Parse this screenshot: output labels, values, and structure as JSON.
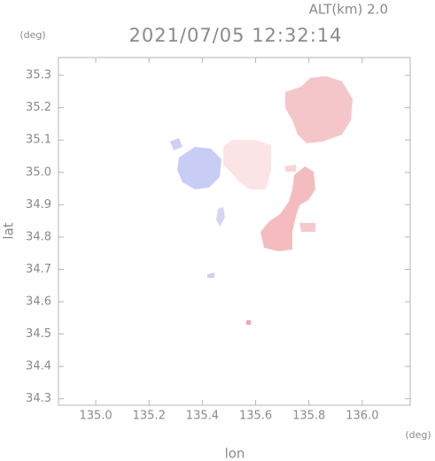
{
  "chart_data": {
    "type": "map",
    "title": "2021/07/05 12:32:14",
    "subtitle": "ALT(km)  2.0",
    "x_label": "lon",
    "y_label": "lat",
    "x_unit": "(deg)",
    "y_unit": "(deg)",
    "xlim": [
      134.86,
      136.18
    ],
    "ylim": [
      34.28,
      35.355
    ],
    "xticks": [
      {
        "value": 135.0,
        "label": "135.0"
      },
      135.2,
      135.4,
      135.6,
      135.8,
      {
        "value": 136.0,
        "label": "136.0"
      }
    ],
    "yticks": [
      34.3,
      34.4,
      34.5,
      34.6,
      34.7,
      34.8,
      34.9,
      {
        "value": 35.0,
        "label": "35.0"
      },
      35.1,
      35.2,
      35.3
    ]
  }
}
